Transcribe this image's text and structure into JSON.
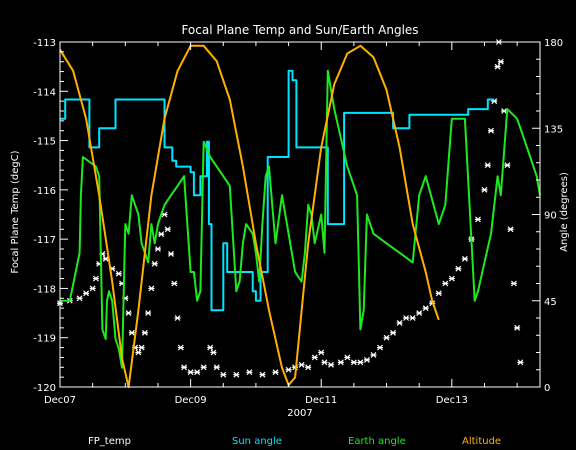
{
  "chart_data": {
    "type": "line",
    "title": "Focal Plane Temp and Sun/Earth Angles",
    "xlabel": "2007",
    "ylabel": "Focal Plane Temp (degC)",
    "y2label": "Angle (degrees)",
    "x_range": [
      0,
      7.35
    ],
    "x_unit": "days since Dec07 2007",
    "ylim": [
      -120,
      -113
    ],
    "y2lim": [
      0,
      180
    ],
    "x_ticks": [
      {
        "value": 0,
        "label": "Dec07"
      },
      {
        "value": 2,
        "label": "Dec09"
      },
      {
        "value": 4,
        "label": "Dec11"
      },
      {
        "value": 6,
        "label": "Dec13"
      }
    ],
    "y_ticks": [
      {
        "value": -113,
        "label": "-113"
      },
      {
        "value": -114,
        "label": "-114"
      },
      {
        "value": -115,
        "label": "-115"
      },
      {
        "value": -116,
        "label": "-116"
      },
      {
        "value": -117,
        "label": "-117"
      },
      {
        "value": -118,
        "label": "-118"
      },
      {
        "value": -119,
        "label": "-119"
      },
      {
        "value": -120,
        "label": "-120"
      }
    ],
    "y2_ticks": [
      {
        "value": 0,
        "label": "0"
      },
      {
        "value": 45,
        "label": "45"
      },
      {
        "value": 90,
        "label": "90"
      },
      {
        "value": 135,
        "label": "135"
      },
      {
        "value": 180,
        "label": "180"
      }
    ],
    "grid": false,
    "legend_position": "bottom",
    "series": [
      {
        "name": "FP_temp",
        "axis": "left",
        "color": "#ffffff",
        "style": "markers",
        "points": [
          [
            0.0,
            -118.3
          ],
          [
            0.15,
            -118.25
          ],
          [
            0.3,
            -118.2
          ],
          [
            0.4,
            -118.1
          ],
          [
            0.5,
            -118.0
          ],
          [
            0.55,
            -117.8
          ],
          [
            0.6,
            -117.5
          ],
          [
            0.65,
            -117.3
          ],
          [
            0.7,
            -117.4
          ],
          [
            0.8,
            -117.6
          ],
          [
            0.9,
            -117.7
          ],
          [
            0.95,
            -117.9
          ],
          [
            1.0,
            -118.2
          ],
          [
            1.05,
            -118.5
          ],
          [
            1.1,
            -118.9
          ],
          [
            1.15,
            -119.2
          ],
          [
            1.2,
            -119.3
          ],
          [
            1.25,
            -119.2
          ],
          [
            1.3,
            -118.9
          ],
          [
            1.35,
            -118.5
          ],
          [
            1.4,
            -118.0
          ],
          [
            1.45,
            -117.5
          ],
          [
            1.5,
            -117.2
          ],
          [
            1.55,
            -116.9
          ],
          [
            1.6,
            -116.5
          ],
          [
            1.65,
            -116.8
          ],
          [
            1.7,
            -117.3
          ],
          [
            1.75,
            -117.9
          ],
          [
            1.8,
            -118.6
          ],
          [
            1.85,
            -119.2
          ],
          [
            1.9,
            -119.6
          ],
          [
            2.0,
            -119.7
          ],
          [
            2.1,
            -119.7
          ],
          [
            2.2,
            -119.6
          ],
          [
            2.3,
            -119.2
          ],
          [
            2.35,
            -119.3
          ],
          [
            2.4,
            -119.6
          ],
          [
            2.5,
            -119.75
          ],
          [
            2.7,
            -119.75
          ],
          [
            2.9,
            -119.7
          ],
          [
            3.1,
            -119.75
          ],
          [
            3.3,
            -119.7
          ],
          [
            3.5,
            -119.65
          ],
          [
            3.6,
            -119.6
          ],
          [
            3.7,
            -119.55
          ],
          [
            3.8,
            -119.6
          ],
          [
            3.9,
            -119.4
          ],
          [
            4.0,
            -119.3
          ],
          [
            4.05,
            -119.5
          ],
          [
            4.15,
            -119.55
          ],
          [
            4.3,
            -119.5
          ],
          [
            4.4,
            -119.4
          ],
          [
            4.5,
            -119.5
          ],
          [
            4.6,
            -119.5
          ],
          [
            4.7,
            -119.45
          ],
          [
            4.8,
            -119.35
          ],
          [
            4.9,
            -119.2
          ],
          [
            5.0,
            -119.0
          ],
          [
            5.1,
            -118.9
          ],
          [
            5.2,
            -118.7
          ],
          [
            5.3,
            -118.6
          ],
          [
            5.4,
            -118.6
          ],
          [
            5.5,
            -118.5
          ],
          [
            5.6,
            -118.4
          ],
          [
            5.7,
            -118.3
          ],
          [
            5.8,
            -118.1
          ],
          [
            5.9,
            -117.9
          ],
          [
            6.0,
            -117.8
          ],
          [
            6.1,
            -117.6
          ],
          [
            6.2,
            -117.4
          ],
          [
            6.3,
            -117.0
          ],
          [
            6.4,
            -116.6
          ],
          [
            6.5,
            -116.0
          ],
          [
            6.55,
            -115.5
          ],
          [
            6.6,
            -114.8
          ],
          [
            6.65,
            -114.2
          ],
          [
            6.7,
            -113.5
          ],
          [
            6.72,
            -113.0
          ],
          [
            6.75,
            -113.4
          ],
          [
            6.8,
            -114.4
          ],
          [
            6.85,
            -115.5
          ],
          [
            6.9,
            -116.8
          ],
          [
            6.95,
            -117.9
          ],
          [
            7.0,
            -118.8
          ],
          [
            7.05,
            -119.5
          ]
        ]
      },
      {
        "name": "Sun angle",
        "axis": "right",
        "color": "#00e5ff",
        "style": "line",
        "points": [
          [
            0.0,
            140
          ],
          [
            0.08,
            140
          ],
          [
            0.08,
            150
          ],
          [
            0.45,
            150
          ],
          [
            0.45,
            125
          ],
          [
            0.6,
            125
          ],
          [
            0.6,
            135
          ],
          [
            0.85,
            135
          ],
          [
            0.85,
            150
          ],
          [
            1.6,
            150
          ],
          [
            1.6,
            125
          ],
          [
            1.72,
            125
          ],
          [
            1.72,
            118
          ],
          [
            1.78,
            118
          ],
          [
            1.78,
            115
          ],
          [
            2.0,
            115
          ],
          [
            2.0,
            112
          ],
          [
            2.05,
            112
          ],
          [
            2.05,
            100
          ],
          [
            2.15,
            100
          ],
          [
            2.15,
            110
          ],
          [
            2.25,
            110
          ],
          [
            2.25,
            128
          ],
          [
            2.28,
            128
          ],
          [
            2.28,
            85
          ],
          [
            2.32,
            85
          ],
          [
            2.32,
            40
          ],
          [
            2.5,
            40
          ],
          [
            2.5,
            75
          ],
          [
            2.56,
            75
          ],
          [
            2.56,
            60
          ],
          [
            2.95,
            60
          ],
          [
            2.95,
            50
          ],
          [
            3.0,
            50
          ],
          [
            3.0,
            45
          ],
          [
            3.07,
            45
          ],
          [
            3.07,
            60
          ],
          [
            3.18,
            60
          ],
          [
            3.18,
            120
          ],
          [
            3.5,
            120
          ],
          [
            3.5,
            165
          ],
          [
            3.56,
            165
          ],
          [
            3.56,
            160
          ],
          [
            3.62,
            160
          ],
          [
            3.62,
            125
          ],
          [
            4.1,
            125
          ],
          [
            4.1,
            85
          ],
          [
            4.35,
            85
          ],
          [
            4.35,
            143
          ],
          [
            5.1,
            143
          ],
          [
            5.1,
            135
          ],
          [
            5.35,
            135
          ],
          [
            5.35,
            142
          ],
          [
            6.25,
            142
          ],
          [
            6.25,
            145
          ],
          [
            6.55,
            145
          ],
          [
            6.55,
            150
          ],
          [
            6.65,
            150
          ]
        ]
      },
      {
        "name": "Earth angle",
        "axis": "right",
        "color": "#1ee81e",
        "style": "line",
        "points": [
          [
            0.0,
            45
          ],
          [
            0.15,
            45
          ],
          [
            0.3,
            70
          ],
          [
            0.32,
            100
          ],
          [
            0.35,
            120
          ],
          [
            0.55,
            115
          ],
          [
            0.6,
            110
          ],
          [
            0.65,
            30
          ],
          [
            0.7,
            25
          ],
          [
            0.72,
            45
          ],
          [
            0.75,
            50
          ],
          [
            0.8,
            45
          ],
          [
            0.85,
            25
          ],
          [
            0.9,
            20
          ],
          [
            0.95,
            10
          ],
          [
            1.0,
            85
          ],
          [
            1.05,
            80
          ],
          [
            1.1,
            100
          ],
          [
            1.15,
            95
          ],
          [
            1.2,
            90
          ],
          [
            1.25,
            75
          ],
          [
            1.3,
            70
          ],
          [
            1.35,
            65
          ],
          [
            1.4,
            85
          ],
          [
            1.45,
            75
          ],
          [
            1.5,
            85
          ],
          [
            1.55,
            90
          ],
          [
            1.6,
            95
          ],
          [
            1.7,
            100
          ],
          [
            1.8,
            105
          ],
          [
            1.9,
            110
          ],
          [
            2.0,
            60
          ],
          [
            2.05,
            60
          ],
          [
            2.1,
            45
          ],
          [
            2.15,
            50
          ],
          [
            2.2,
            128
          ],
          [
            2.3,
            120
          ],
          [
            2.5,
            110
          ],
          [
            2.6,
            105
          ],
          [
            2.7,
            50
          ],
          [
            2.75,
            55
          ],
          [
            2.8,
            75
          ],
          [
            2.85,
            85
          ],
          [
            2.95,
            80
          ],
          [
            3.0,
            70
          ],
          [
            3.05,
            55
          ],
          [
            3.1,
            85
          ],
          [
            3.15,
            110
          ],
          [
            3.2,
            115
          ],
          [
            3.3,
            75
          ],
          [
            3.4,
            100
          ],
          [
            3.5,
            80
          ],
          [
            3.55,
            70
          ],
          [
            3.6,
            60
          ],
          [
            3.7,
            55
          ],
          [
            3.75,
            70
          ],
          [
            3.8,
            95
          ],
          [
            3.85,
            90
          ],
          [
            3.9,
            75
          ],
          [
            4.0,
            90
          ],
          [
            4.05,
            70
          ],
          [
            4.1,
            165
          ],
          [
            4.15,
            155
          ],
          [
            4.2,
            145
          ],
          [
            4.3,
            130
          ],
          [
            4.4,
            115
          ],
          [
            4.5,
            105
          ],
          [
            4.55,
            100
          ],
          [
            4.6,
            30
          ],
          [
            4.65,
            40
          ],
          [
            4.7,
            90
          ],
          [
            4.75,
            85
          ],
          [
            4.8,
            80
          ],
          [
            5.0,
            75
          ],
          [
            5.2,
            70
          ],
          [
            5.4,
            65
          ],
          [
            5.5,
            100
          ],
          [
            5.6,
            110
          ],
          [
            5.8,
            85
          ],
          [
            5.9,
            95
          ],
          [
            6.0,
            140
          ],
          [
            6.2,
            140
          ],
          [
            6.35,
            45
          ],
          [
            6.4,
            50
          ],
          [
            6.6,
            80
          ],
          [
            6.7,
            110
          ],
          [
            6.75,
            100
          ],
          [
            6.85,
            145
          ],
          [
            7.0,
            140
          ],
          [
            7.1,
            130
          ],
          [
            7.2,
            120
          ],
          [
            7.3,
            110
          ],
          [
            7.35,
            100
          ]
        ]
      },
      {
        "name": "Altitude",
        "axis": "right",
        "color": "#ffb000",
        "style": "line",
        "points": [
          [
            0.0,
            176
          ],
          [
            0.2,
            165
          ],
          [
            0.4,
            140
          ],
          [
            0.6,
            100
          ],
          [
            0.8,
            55
          ],
          [
            0.95,
            15
          ],
          [
            1.05,
            0
          ],
          [
            1.2,
            40
          ],
          [
            1.4,
            100
          ],
          [
            1.6,
            140
          ],
          [
            1.8,
            165
          ],
          [
            2.0,
            178
          ],
          [
            2.2,
            178
          ],
          [
            2.4,
            170
          ],
          [
            2.6,
            150
          ],
          [
            2.8,
            115
          ],
          [
            3.0,
            75
          ],
          [
            3.2,
            40
          ],
          [
            3.4,
            10
          ],
          [
            3.5,
            1
          ],
          [
            3.6,
            5
          ],
          [
            3.8,
            75
          ],
          [
            4.0,
            125
          ],
          [
            4.2,
            158
          ],
          [
            4.4,
            174
          ],
          [
            4.6,
            178
          ],
          [
            4.8,
            172
          ],
          [
            5.0,
            155
          ],
          [
            5.2,
            125
          ],
          [
            5.4,
            85
          ],
          [
            5.6,
            60
          ],
          [
            5.7,
            45
          ],
          [
            5.8,
            35
          ]
        ]
      }
    ]
  }
}
